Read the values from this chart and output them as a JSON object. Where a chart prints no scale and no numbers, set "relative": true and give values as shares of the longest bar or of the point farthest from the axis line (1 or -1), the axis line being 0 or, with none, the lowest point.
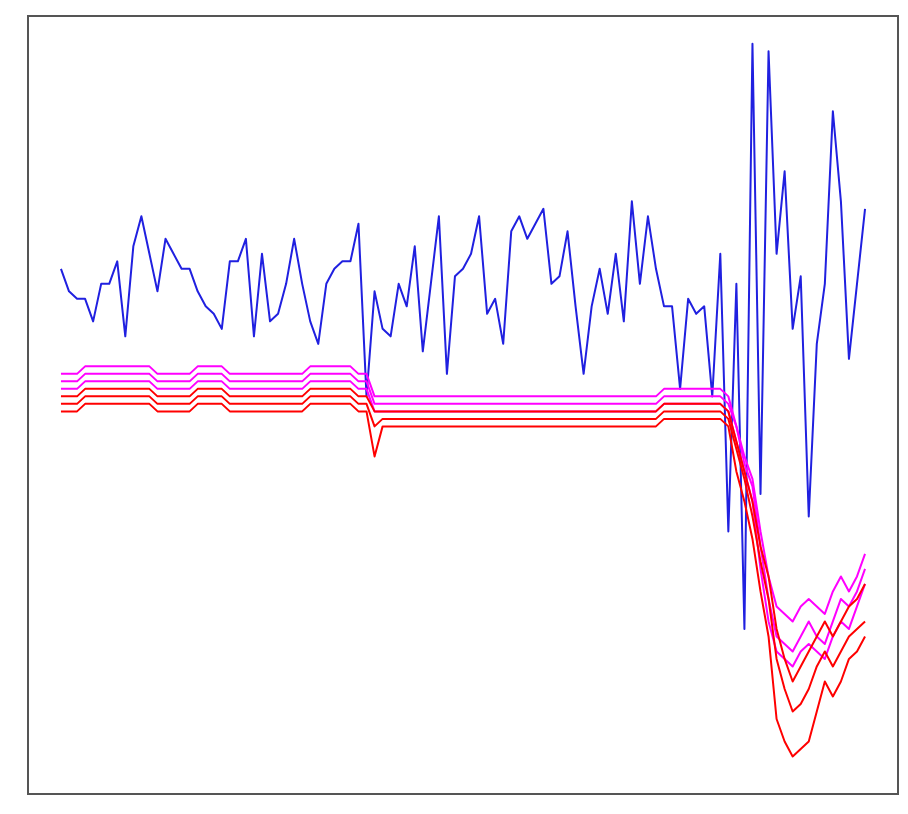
{
  "chart_data": {
    "type": "line",
    "relative": true,
    "marker": "none",
    "line_style": "solid",
    "categories": [
      null,
      null,
      null,
      null,
      null,
      null,
      null,
      null,
      null,
      null,
      null,
      null,
      null,
      null,
      null,
      null,
      null,
      null,
      null,
      null,
      null,
      null,
      null,
      null,
      null,
      null,
      null,
      null,
      null,
      null,
      null,
      null,
      null,
      null,
      null,
      null,
      null,
      null,
      null,
      null,
      null,
      null,
      null,
      null,
      null,
      null,
      null,
      null,
      null,
      null,
      null,
      null,
      null,
      null,
      null,
      null,
      null,
      null,
      null,
      null,
      null,
      null,
      null,
      null,
      null,
      null,
      null,
      null,
      null,
      null,
      null,
      null,
      null,
      null,
      null,
      null,
      null,
      null,
      null,
      null,
      null,
      null,
      null,
      null,
      null,
      null,
      null,
      null,
      null,
      null,
      null,
      null,
      null,
      null,
      null,
      null,
      null,
      null,
      null,
      null,
      null
    ],
    "series": [
      {
        "color": "#2020e0",
        "values": [
          0.7,
          0.67,
          0.66,
          0.66,
          0.63,
          0.68,
          0.68,
          0.71,
          0.61,
          0.73,
          0.77,
          0.72,
          0.67,
          0.74,
          0.72,
          0.7,
          0.7,
          0.67,
          0.65,
          0.64,
          0.62,
          0.71,
          0.71,
          0.74,
          0.61,
          0.72,
          0.63,
          0.64,
          0.68,
          0.74,
          0.68,
          0.63,
          0.6,
          0.68,
          0.7,
          0.71,
          0.71,
          0.76,
          0.53,
          0.67,
          0.62,
          0.61,
          0.68,
          0.65,
          0.73,
          0.59,
          0.68,
          0.77,
          0.56,
          0.69,
          0.7,
          0.72,
          0.77,
          0.64,
          0.66,
          0.6,
          0.75,
          0.77,
          0.74,
          0.76,
          0.78,
          0.68,
          0.69,
          0.75,
          0.65,
          0.56,
          0.65,
          0.7,
          0.64,
          0.72,
          0.63,
          0.79,
          0.68,
          0.77,
          0.7,
          0.65,
          0.65,
          0.54,
          0.66,
          0.64,
          0.65,
          0.53,
          0.72,
          0.35,
          0.68,
          0.22,
          1.0,
          0.4,
          0.99,
          0.72,
          0.83,
          0.62,
          0.69,
          0.37,
          0.6,
          0.68,
          0.91,
          0.79,
          0.58,
          0.68,
          0.78
        ]
      },
      {
        "color": "#ff00ff",
        "values": [
          0.56,
          0.56,
          0.56,
          0.57,
          0.57,
          0.57,
          0.57,
          0.57,
          0.57,
          0.57,
          0.57,
          0.57,
          0.56,
          0.56,
          0.56,
          0.56,
          0.56,
          0.57,
          0.57,
          0.57,
          0.57,
          0.56,
          0.56,
          0.56,
          0.56,
          0.56,
          0.56,
          0.56,
          0.56,
          0.56,
          0.56,
          0.57,
          0.57,
          0.57,
          0.57,
          0.57,
          0.57,
          0.56,
          0.56,
          0.53,
          0.53,
          0.53,
          0.53,
          0.53,
          0.53,
          0.53,
          0.53,
          0.53,
          0.53,
          0.53,
          0.53,
          0.53,
          0.53,
          0.53,
          0.53,
          0.53,
          0.53,
          0.53,
          0.53,
          0.53,
          0.53,
          0.53,
          0.53,
          0.53,
          0.53,
          0.53,
          0.53,
          0.53,
          0.53,
          0.53,
          0.53,
          0.53,
          0.53,
          0.53,
          0.53,
          0.54,
          0.54,
          0.54,
          0.54,
          0.54,
          0.54,
          0.54,
          0.54,
          0.53,
          0.49,
          0.45,
          0.42,
          0.35,
          0.29,
          0.25,
          0.24,
          0.23,
          0.25,
          0.26,
          0.25,
          0.24,
          0.27,
          0.29,
          0.27,
          0.29,
          0.32
        ]
      },
      {
        "color": "#ff00ff",
        "values": [
          0.55,
          0.55,
          0.55,
          0.56,
          0.56,
          0.56,
          0.56,
          0.56,
          0.56,
          0.56,
          0.56,
          0.56,
          0.55,
          0.55,
          0.55,
          0.55,
          0.55,
          0.56,
          0.56,
          0.56,
          0.56,
          0.55,
          0.55,
          0.55,
          0.55,
          0.55,
          0.55,
          0.55,
          0.55,
          0.55,
          0.55,
          0.56,
          0.56,
          0.56,
          0.56,
          0.56,
          0.56,
          0.55,
          0.55,
          0.52,
          0.52,
          0.52,
          0.52,
          0.52,
          0.52,
          0.52,
          0.52,
          0.52,
          0.52,
          0.52,
          0.52,
          0.52,
          0.52,
          0.52,
          0.52,
          0.52,
          0.52,
          0.52,
          0.52,
          0.52,
          0.52,
          0.52,
          0.52,
          0.52,
          0.52,
          0.52,
          0.52,
          0.52,
          0.52,
          0.52,
          0.52,
          0.52,
          0.52,
          0.52,
          0.52,
          0.53,
          0.53,
          0.53,
          0.53,
          0.53,
          0.53,
          0.53,
          0.53,
          0.52,
          0.49,
          0.44,
          0.41,
          0.33,
          0.26,
          0.21,
          0.2,
          0.19,
          0.21,
          0.23,
          0.21,
          0.2,
          0.23,
          0.26,
          0.25,
          0.27,
          0.3
        ]
      },
      {
        "color": "#ff00ff",
        "values": [
          0.54,
          0.54,
          0.54,
          0.55,
          0.55,
          0.55,
          0.55,
          0.55,
          0.55,
          0.55,
          0.55,
          0.55,
          0.54,
          0.54,
          0.54,
          0.54,
          0.54,
          0.55,
          0.55,
          0.55,
          0.55,
          0.54,
          0.54,
          0.54,
          0.54,
          0.54,
          0.54,
          0.54,
          0.54,
          0.54,
          0.54,
          0.55,
          0.55,
          0.55,
          0.55,
          0.55,
          0.55,
          0.54,
          0.54,
          0.51,
          0.51,
          0.51,
          0.51,
          0.51,
          0.51,
          0.51,
          0.51,
          0.51,
          0.51,
          0.51,
          0.51,
          0.51,
          0.51,
          0.51,
          0.51,
          0.51,
          0.51,
          0.51,
          0.51,
          0.51,
          0.51,
          0.51,
          0.51,
          0.51,
          0.51,
          0.51,
          0.51,
          0.51,
          0.51,
          0.51,
          0.51,
          0.51,
          0.51,
          0.51,
          0.51,
          0.52,
          0.52,
          0.52,
          0.52,
          0.52,
          0.52,
          0.52,
          0.52,
          0.51,
          0.47,
          0.43,
          0.39,
          0.3,
          0.23,
          0.19,
          0.18,
          0.17,
          0.19,
          0.2,
          0.19,
          0.18,
          0.21,
          0.23,
          0.22,
          0.25,
          0.28
        ]
      },
      {
        "color": "#ff0000",
        "values": [
          0.53,
          0.53,
          0.53,
          0.54,
          0.54,
          0.54,
          0.54,
          0.54,
          0.54,
          0.54,
          0.54,
          0.54,
          0.53,
          0.53,
          0.53,
          0.53,
          0.53,
          0.54,
          0.54,
          0.54,
          0.54,
          0.53,
          0.53,
          0.53,
          0.53,
          0.53,
          0.53,
          0.53,
          0.53,
          0.53,
          0.53,
          0.54,
          0.54,
          0.54,
          0.54,
          0.54,
          0.54,
          0.53,
          0.53,
          0.51,
          0.51,
          0.51,
          0.51,
          0.51,
          0.51,
          0.51,
          0.51,
          0.51,
          0.51,
          0.51,
          0.51,
          0.51,
          0.51,
          0.51,
          0.51,
          0.51,
          0.51,
          0.51,
          0.51,
          0.51,
          0.51,
          0.51,
          0.51,
          0.51,
          0.51,
          0.51,
          0.51,
          0.51,
          0.51,
          0.51,
          0.51,
          0.51,
          0.51,
          0.51,
          0.51,
          0.52,
          0.52,
          0.52,
          0.52,
          0.52,
          0.52,
          0.52,
          0.52,
          0.51,
          0.47,
          0.43,
          0.39,
          0.33,
          0.29,
          0.22,
          0.18,
          0.15,
          0.17,
          0.19,
          0.21,
          0.23,
          0.21,
          0.23,
          0.25,
          0.26,
          0.28
        ]
      },
      {
        "color": "#ff0000",
        "values": [
          0.52,
          0.52,
          0.52,
          0.53,
          0.53,
          0.53,
          0.53,
          0.53,
          0.53,
          0.53,
          0.53,
          0.53,
          0.52,
          0.52,
          0.52,
          0.52,
          0.52,
          0.53,
          0.53,
          0.53,
          0.53,
          0.52,
          0.52,
          0.52,
          0.52,
          0.52,
          0.52,
          0.52,
          0.52,
          0.52,
          0.52,
          0.53,
          0.53,
          0.53,
          0.53,
          0.53,
          0.53,
          0.52,
          0.52,
          0.49,
          0.5,
          0.5,
          0.5,
          0.5,
          0.5,
          0.5,
          0.5,
          0.5,
          0.5,
          0.5,
          0.5,
          0.5,
          0.5,
          0.5,
          0.5,
          0.5,
          0.5,
          0.5,
          0.5,
          0.5,
          0.5,
          0.5,
          0.5,
          0.5,
          0.5,
          0.5,
          0.5,
          0.5,
          0.5,
          0.5,
          0.5,
          0.5,
          0.5,
          0.5,
          0.5,
          0.51,
          0.51,
          0.51,
          0.51,
          0.51,
          0.51,
          0.51,
          0.51,
          0.5,
          0.46,
          0.42,
          0.37,
          0.31,
          0.26,
          0.18,
          0.14,
          0.11,
          0.12,
          0.14,
          0.17,
          0.19,
          0.17,
          0.19,
          0.21,
          0.22,
          0.23
        ]
      },
      {
        "color": "#ff0000",
        "values": [
          0.51,
          0.51,
          0.51,
          0.52,
          0.52,
          0.52,
          0.52,
          0.52,
          0.52,
          0.52,
          0.52,
          0.52,
          0.51,
          0.51,
          0.51,
          0.51,
          0.51,
          0.52,
          0.52,
          0.52,
          0.52,
          0.51,
          0.51,
          0.51,
          0.51,
          0.51,
          0.51,
          0.51,
          0.51,
          0.51,
          0.51,
          0.52,
          0.52,
          0.52,
          0.52,
          0.52,
          0.52,
          0.51,
          0.51,
          0.45,
          0.49,
          0.49,
          0.49,
          0.49,
          0.49,
          0.49,
          0.49,
          0.49,
          0.49,
          0.49,
          0.49,
          0.49,
          0.49,
          0.49,
          0.49,
          0.49,
          0.49,
          0.49,
          0.49,
          0.49,
          0.49,
          0.49,
          0.49,
          0.49,
          0.49,
          0.49,
          0.49,
          0.49,
          0.49,
          0.49,
          0.49,
          0.49,
          0.49,
          0.49,
          0.49,
          0.5,
          0.5,
          0.5,
          0.5,
          0.5,
          0.5,
          0.5,
          0.5,
          0.49,
          0.43,
          0.39,
          0.34,
          0.27,
          0.21,
          0.1,
          0.07,
          0.05,
          0.06,
          0.07,
          0.11,
          0.15,
          0.13,
          0.15,
          0.18,
          0.19,
          0.21
        ]
      }
    ]
  }
}
